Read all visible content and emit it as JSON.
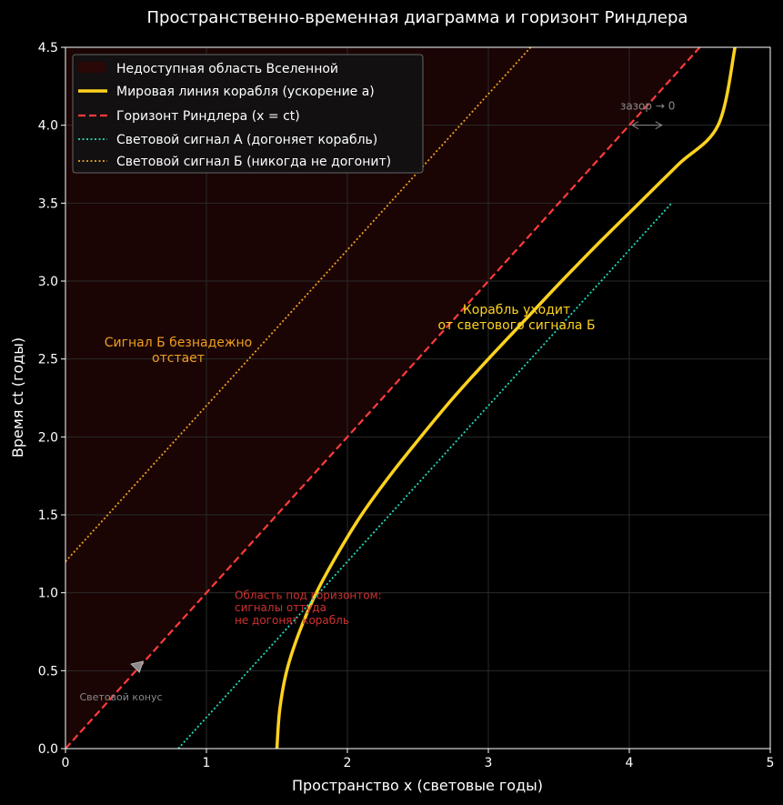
{
  "colors": {
    "background": "#000000",
    "plot_bg": "#000000",
    "forbidden_region": "#1a0404",
    "ship": "#ffd21f",
    "horizon": "#ff3b3b",
    "signal_a": "#1fe0c0",
    "signal_b": "#f0a020",
    "text": "#ffffff",
    "grid": "#2a2a2a",
    "annotation_gray": "#8a8a8a",
    "annotation_red": "#d03030",
    "annotation_yellow": "#ffd21f",
    "annotation_orange": "#f0a020"
  },
  "chart_data": {
    "type": "line",
    "title": "Пространственно-временная диаграмма и горизонт Риндлера",
    "xlabel": "Пространство x (световые годы)",
    "ylabel": "Время ct (годы)",
    "xlim": [
      0,
      5
    ],
    "ylim": [
      0,
      4.5
    ],
    "xticks": [
      "0",
      "1",
      "2",
      "3",
      "4",
      "5"
    ],
    "yticks": [
      "0.0",
      "0.5",
      "1.0",
      "1.5",
      "2.0",
      "2.5",
      "3.0",
      "3.5",
      "4.0",
      "4.5"
    ],
    "grid": true,
    "legend_position": "top-left",
    "legend": [
      "Недоступная область Вселенной",
      "Мировая линия корабля (ускорение a)",
      "Горизонт Риндлера (x = ct)",
      "Световой сигнал А (догоняет корабль)",
      "Световой сигнал Б (никогда не догонит)"
    ],
    "series": [
      {
        "name": "Мировая линия корабля (ускорение a)",
        "style": "solid",
        "x": [
          1.5,
          1.52,
          1.57,
          1.66,
          1.78,
          1.93,
          2.1,
          2.3,
          2.52,
          2.75,
          3.0,
          3.26,
          3.52,
          3.79,
          4.07,
          4.35,
          4.63,
          4.75
        ],
        "y": [
          0.0,
          0.25,
          0.5,
          0.75,
          1.0,
          1.25,
          1.5,
          1.75,
          2.0,
          2.25,
          2.5,
          2.75,
          3.0,
          3.25,
          3.5,
          3.75,
          4.0,
          4.5
        ]
      },
      {
        "name": "Горизонт Риндлера (x = ct)",
        "style": "dashed",
        "x": [
          0,
          4.5
        ],
        "y": [
          0,
          4.5
        ]
      },
      {
        "name": "Световой сигнал А (догоняет корабль)",
        "style": "dotted",
        "x": [
          0.8,
          4.3
        ],
        "y": [
          0,
          3.5
        ]
      },
      {
        "name": "Световой сигнал Б (никогда не догонит)",
        "style": "dotted",
        "x": [
          0,
          3.3
        ],
        "y": [
          1.2,
          4.5
        ]
      }
    ],
    "annotations": [
      {
        "text": "Сигнал Б безнадежно",
        "x": 0.8,
        "y": 2.58,
        "color": "orange"
      },
      {
        "text": "отстает",
        "x": 0.8,
        "y": 2.48,
        "color": "orange"
      },
      {
        "text": "Корабль уходит",
        "x": 3.2,
        "y": 2.79,
        "color": "yellow"
      },
      {
        "text": "от светового сигнала Б",
        "x": 3.2,
        "y": 2.69,
        "color": "yellow"
      },
      {
        "text": "Область под горизонтом:",
        "x": 1.2,
        "y": 0.96,
        "color": "red"
      },
      {
        "text": "сигналы оттуда",
        "x": 1.2,
        "y": 0.88,
        "color": "red"
      },
      {
        "text": "не догонят корабль",
        "x": 1.2,
        "y": 0.8,
        "color": "red"
      },
      {
        "text": "Световой конус",
        "x": 0.1,
        "y": 0.31,
        "color": "gray"
      },
      {
        "text": "зазор → 0",
        "x": 4.13,
        "y": 4.1,
        "color": "gray"
      }
    ]
  }
}
